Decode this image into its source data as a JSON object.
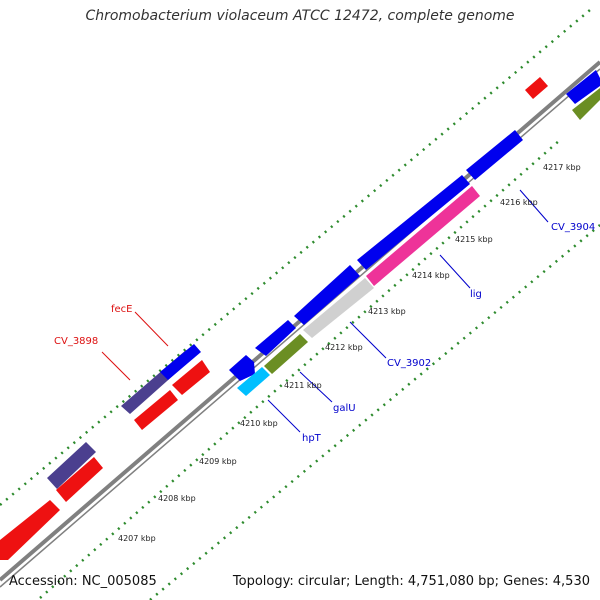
{
  "title": "Chromobacterium violaceum ATCC 12472, complete genome",
  "footer": {
    "accession": "Accession: NC_005085",
    "summary": "Topology: circular; Length: 4,751,080 bp; Genes: 4,530"
  },
  "colors": {
    "backbone": "#808080",
    "tick_dots": "#2e8b2e",
    "tick_major": "#2e8b2e",
    "forward_strand": "#0000ee",
    "forward_strand_alt": "#4b3f8f",
    "reverse_strand": "#ee1111",
    "lig": "#ee3399",
    "cv_3902": "#d0d0d0",
    "galU": "#6b8e23",
    "hpT": "#00bfff"
  },
  "scale_ticks": [
    {
      "label": "4207 kbp"
    },
    {
      "label": "4208 kbp"
    },
    {
      "label": "4209 kbp"
    },
    {
      "label": "4210 kbp"
    },
    {
      "label": "4211 kbp"
    },
    {
      "label": "4212 kbp"
    },
    {
      "label": "4213 kbp"
    },
    {
      "label": "4214 kbp"
    },
    {
      "label": "4215 kbp"
    },
    {
      "label": "4216 kbp"
    },
    {
      "label": "4217 kbp"
    }
  ],
  "gene_labels": [
    {
      "label": "fecE",
      "color": "#dd1111"
    },
    {
      "label": "CV_3898",
      "color": "#dd1111"
    },
    {
      "label": "CV_3904",
      "color": "#0000cc"
    },
    {
      "label": "lig",
      "color": "#0000cc"
    },
    {
      "label": "CV_3902",
      "color": "#0000cc"
    },
    {
      "label": "galU",
      "color": "#0000cc"
    },
    {
      "label": "hpT",
      "color": "#0000cc"
    }
  ]
}
